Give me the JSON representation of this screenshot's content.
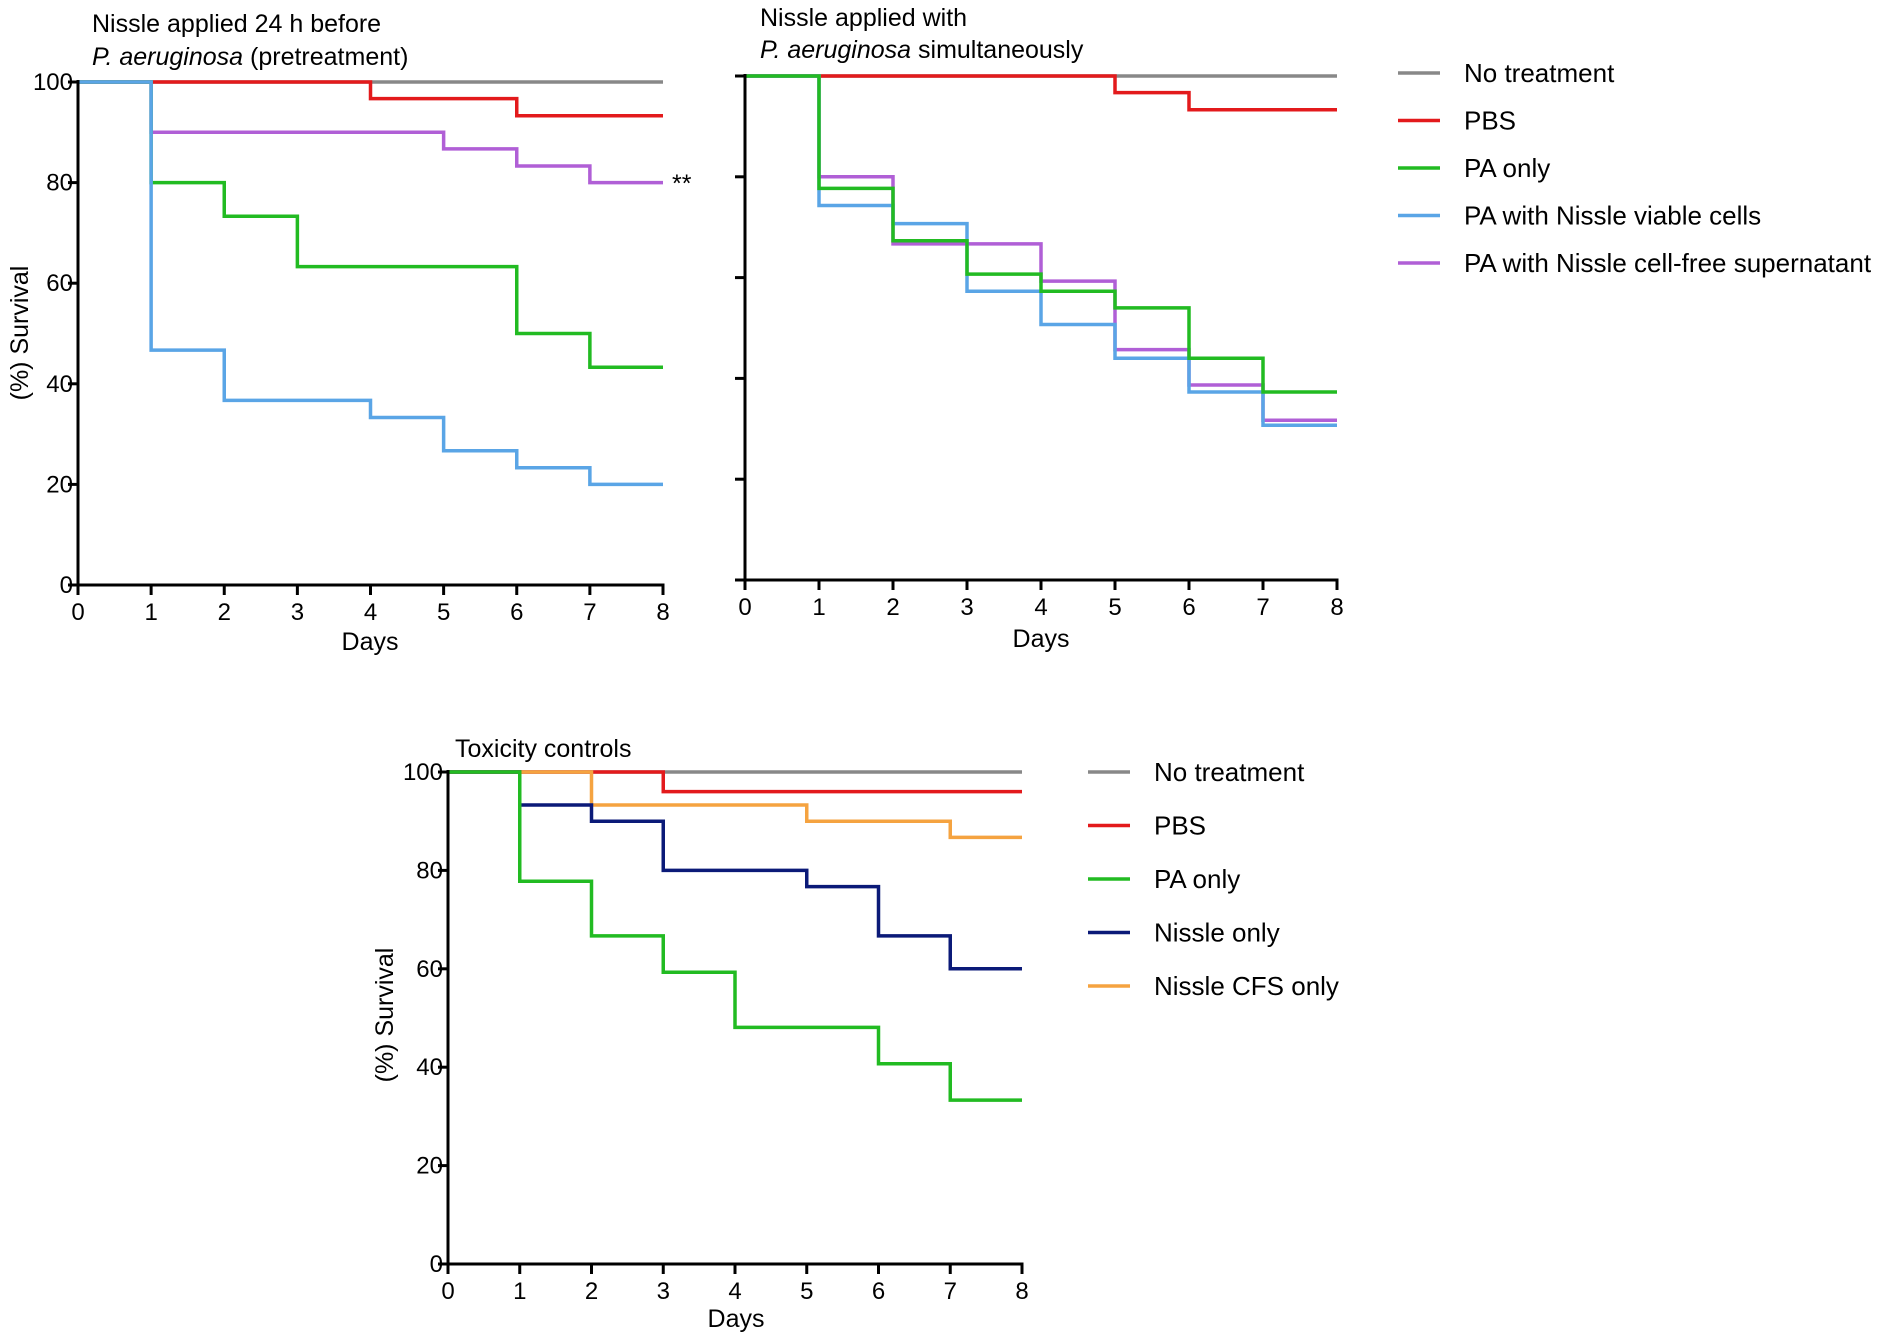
{
  "colors": {
    "no_treatment": "#888888",
    "pbs": "#e31a1c",
    "pa_only": "#22bb22",
    "pa_nissle_viable": "#5aa5e6",
    "pa_nissle_cfs": "#b05fd6",
    "nissle_only": "#0b1a78",
    "nissle_cfs_only": "#f5a340"
  },
  "chart_data": [
    {
      "id": "panel1",
      "type": "line",
      "step": true,
      "title_line1": "Nissle applied 24 h before",
      "title_line2_italic": "P. aeruginosa",
      "title_line2_rest": " (pretreatment)",
      "xlabel": "Days",
      "ylabel": "(%) Survival",
      "xlim": [
        0,
        8
      ],
      "ylim": [
        0,
        100
      ],
      "xticks": [
        "0",
        "1",
        "2",
        "3",
        "4",
        "5",
        "6",
        "7",
        "8"
      ],
      "yticks": [
        "0",
        "20",
        "40",
        "60",
        "80",
        "100"
      ],
      "show_ytick_labels": true,
      "annotation": "**",
      "annotation_x": 8,
      "annotation_y": 80,
      "series": [
        {
          "name": "No treatment",
          "color_key": "no_treatment",
          "x": [
            0,
            8
          ],
          "y": [
            100,
            100
          ]
        },
        {
          "name": "PBS",
          "color_key": "pbs",
          "x": [
            0,
            4,
            6,
            8
          ],
          "y": [
            100,
            96.7,
            93.3,
            93.3
          ]
        },
        {
          "name": "PA with Nissle cell-free supernatant",
          "color_key": "pa_nissle_cfs",
          "x": [
            0,
            1,
            5,
            6,
            7,
            8
          ],
          "y": [
            100,
            90,
            86.7,
            83.3,
            80,
            80
          ]
        },
        {
          "name": "PA only",
          "color_key": "pa_only",
          "x": [
            0,
            1,
            2,
            3,
            6,
            7,
            8
          ],
          "y": [
            100,
            80,
            73.3,
            63.3,
            50,
            43.3,
            43.3
          ]
        },
        {
          "name": "PA with Nissle viable cells",
          "color_key": "pa_nissle_viable",
          "x": [
            0,
            1,
            2,
            4,
            5,
            6,
            7,
            8
          ],
          "y": [
            100,
            46.7,
            36.7,
            33.3,
            26.7,
            23.3,
            20,
            20
          ]
        }
      ]
    },
    {
      "id": "panel2",
      "type": "line",
      "step": true,
      "title_line1": "Nissle applied with",
      "title_line2_italic": "P. aeruginosa",
      "title_line2_rest": " simultaneously",
      "xlabel": "Days",
      "ylabel": "",
      "xlim": [
        0,
        8
      ],
      "ylim": [
        0,
        100
      ],
      "xticks": [
        "0",
        "1",
        "2",
        "3",
        "4",
        "5",
        "6",
        "7",
        "8"
      ],
      "yticks": [
        "",
        "",
        "",
        "",
        "",
        ""
      ],
      "show_ytick_labels": false,
      "series": [
        {
          "name": "No treatment",
          "color_key": "no_treatment",
          "x": [
            0,
            8
          ],
          "y": [
            100,
            100
          ]
        },
        {
          "name": "PBS",
          "color_key": "pbs",
          "x": [
            0,
            5,
            6,
            8
          ],
          "y": [
            100,
            96.7,
            93.3,
            93.3
          ]
        },
        {
          "name": "PA with Nissle cell-free supernatant",
          "color_key": "pa_nissle_cfs",
          "x": [
            0,
            1,
            2,
            4,
            5,
            6,
            7,
            8
          ],
          "y": [
            100,
            80,
            66.7,
            59.3,
            45.7,
            38.7,
            31.7,
            31.7
          ]
        },
        {
          "name": "PA with Nissle viable cells",
          "color_key": "pa_nissle_viable",
          "x": [
            0,
            1,
            2,
            3,
            4,
            5,
            6,
            7,
            8
          ],
          "y": [
            100,
            74.3,
            70.7,
            57.3,
            50.7,
            44.0,
            37.3,
            30.7,
            30.7
          ]
        },
        {
          "name": "PA only",
          "color_key": "pa_only",
          "x": [
            0,
            1,
            2,
            3,
            4,
            5,
            6,
            7,
            8
          ],
          "y": [
            100,
            77.7,
            67.3,
            60.7,
            57.3,
            54.0,
            44.0,
            37.3,
            37.3
          ]
        }
      ]
    },
    {
      "id": "panel3",
      "type": "line",
      "step": true,
      "title_line1": "Toxicity controls",
      "title_line2_italic": "",
      "title_line2_rest": "",
      "xlabel": "Days",
      "ylabel": "(%) Survival",
      "xlim": [
        0,
        8
      ],
      "ylim": [
        0,
        100
      ],
      "xticks": [
        "0",
        "1",
        "2",
        "3",
        "4",
        "5",
        "6",
        "7",
        "8"
      ],
      "yticks": [
        "0",
        "20",
        "40",
        "60",
        "80",
        "100"
      ],
      "show_ytick_labels": true,
      "series": [
        {
          "name": "No treatment",
          "color_key": "no_treatment",
          "x": [
            0,
            8
          ],
          "y": [
            100,
            100
          ]
        },
        {
          "name": "PBS",
          "color_key": "pbs",
          "x": [
            0,
            3,
            8
          ],
          "y": [
            100,
            96,
            96
          ]
        },
        {
          "name": "Nissle CFS only",
          "color_key": "nissle_cfs_only",
          "x": [
            0,
            2,
            5,
            7,
            8
          ],
          "y": [
            100,
            93.3,
            90,
            86.7,
            86.7
          ]
        },
        {
          "name": "Nissle only",
          "color_key": "nissle_only",
          "x": [
            0,
            1,
            2,
            3,
            5,
            6,
            7,
            8
          ],
          "y": [
            100,
            93.3,
            90,
            80,
            76.7,
            66.7,
            60,
            60
          ]
        },
        {
          "name": "PA only",
          "color_key": "pa_only",
          "x": [
            0,
            1,
            2,
            3,
            4,
            6,
            7,
            8
          ],
          "y": [
            100,
            77.8,
            66.7,
            59.3,
            48.1,
            40.7,
            33.3,
            33.3
          ]
        }
      ]
    }
  ],
  "legends": [
    {
      "id": "legend1",
      "items": [
        {
          "label": "No treatment",
          "color_key": "no_treatment"
        },
        {
          "label": "PBS",
          "color_key": "pbs"
        },
        {
          "label": "PA only",
          "color_key": "pa_only"
        },
        {
          "label": "PA with Nissle viable cells",
          "color_key": "pa_nissle_viable"
        },
        {
          "label": "PA with Nissle cell-free supernatant",
          "color_key": "pa_nissle_cfs"
        }
      ]
    },
    {
      "id": "legend2",
      "items": [
        {
          "label": "No treatment",
          "color_key": "no_treatment"
        },
        {
          "label": "PBS",
          "color_key": "pbs"
        },
        {
          "label": "PA only",
          "color_key": "pa_only"
        },
        {
          "label": "Nissle only",
          "color_key": "nissle_only"
        },
        {
          "label": "Nissle CFS only",
          "color_key": "nissle_cfs_only"
        }
      ]
    }
  ]
}
